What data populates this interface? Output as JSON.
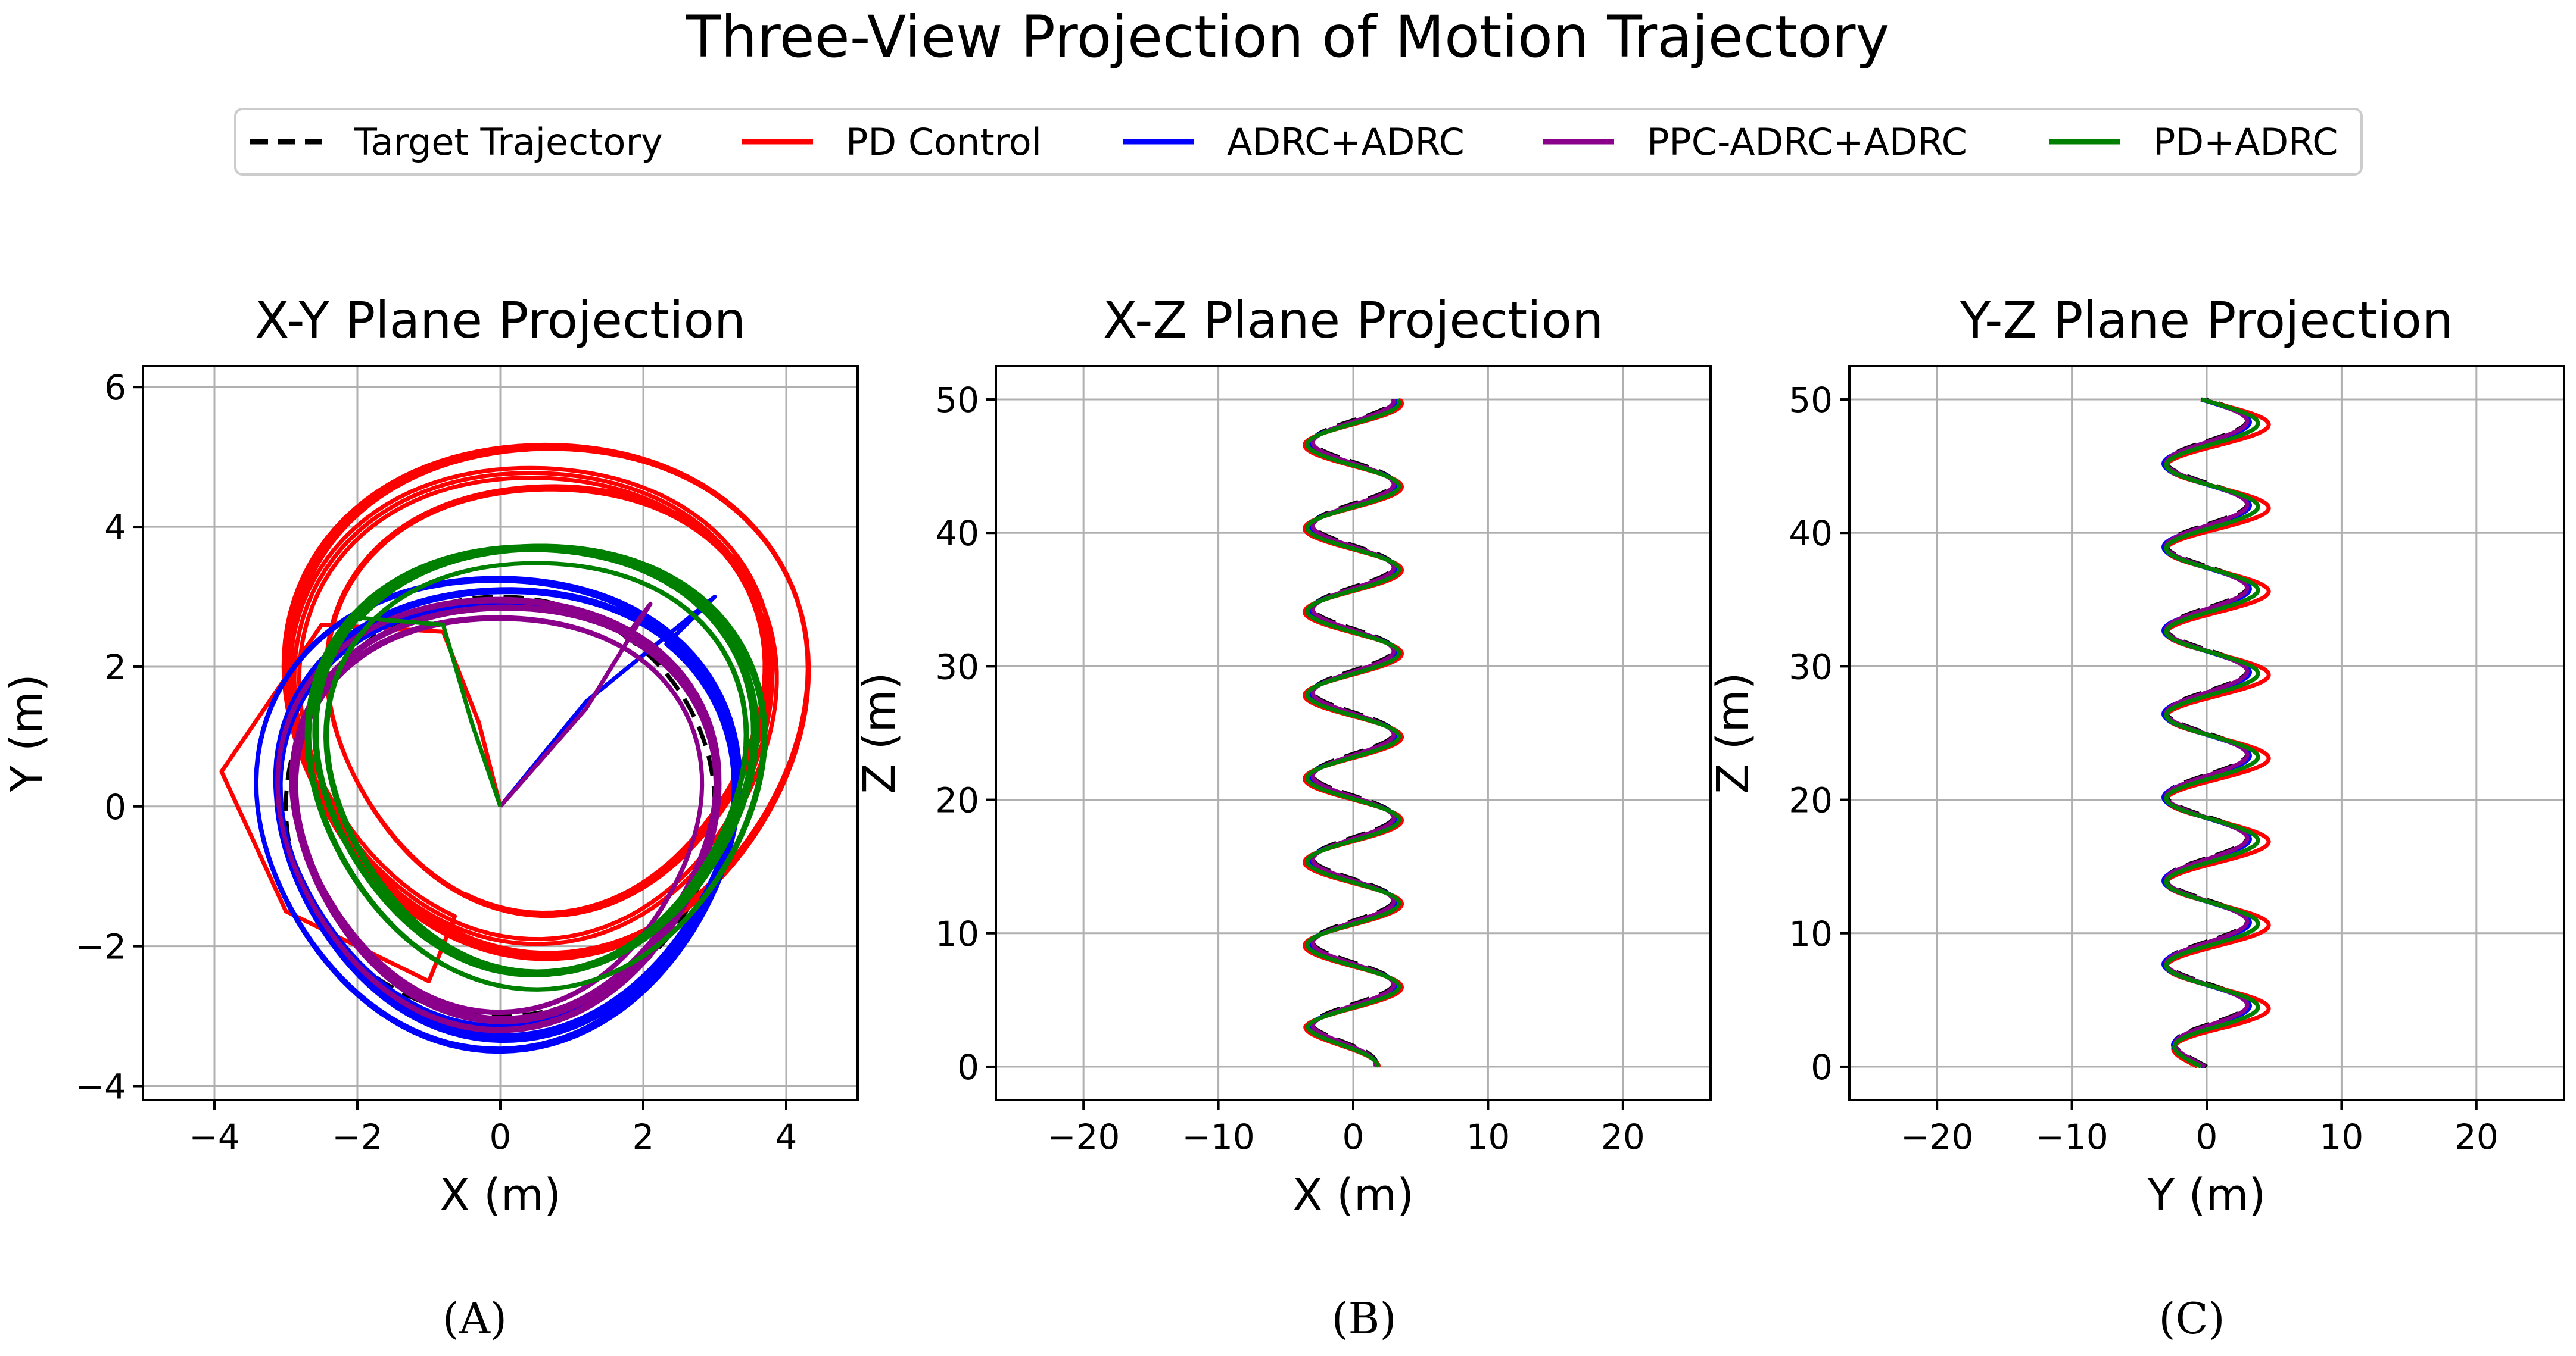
{
  "figure": {
    "title": "Three-View Projection of Motion Trajectory",
    "legend": {
      "placement": "top-center",
      "entries": [
        {
          "label": "Target Trajectory",
          "color": "#000000",
          "style": "dashed"
        },
        {
          "label": "PD Control",
          "color": "#ff0000",
          "style": "solid"
        },
        {
          "label": "ADRC+ADRC",
          "color": "#0000ff",
          "style": "solid"
        },
        {
          "label": "PPC-ADRC+ADRC",
          "color": "#8b008b",
          "style": "solid"
        },
        {
          "label": "PD+ADRC",
          "color": "#008000",
          "style": "solid"
        }
      ]
    },
    "panel_labels": [
      "(A)",
      "(B)",
      "(C)"
    ]
  },
  "chart_data": [
    {
      "type": "line",
      "title": "X-Y Plane Projection",
      "xlabel": "X (m)",
      "ylabel": "Y (m)",
      "xlim": [
        -5,
        5
      ],
      "ylim": [
        -4.2,
        6.3
      ],
      "xticks": [
        -4,
        -2,
        0,
        2,
        4
      ],
      "yticks": [
        -4,
        -2,
        0,
        2,
        4,
        6
      ],
      "grid": true,
      "series": [
        {
          "name": "Target Trajectory",
          "shape": "circle",
          "center": [
            0,
            0
          ],
          "radius": 3.0
        },
        {
          "name": "PD Control",
          "shape": "spiral",
          "approach": [
            [
              0,
              0
            ],
            [
              -0.3,
              1.2
            ],
            [
              -0.8,
              2.5
            ],
            [
              -2.5,
              2.6
            ],
            [
              -3.9,
              0.5
            ],
            [
              -3.0,
              -1.5
            ],
            [
              -1.0,
              -2.5
            ]
          ],
          "center": [
            0.6,
            1.6
          ],
          "radius_range": [
            3.0,
            3.7
          ]
        },
        {
          "name": "ADRC+ADRC",
          "shape": "orbit",
          "approach": [
            [
              0,
              0
            ],
            [
              1.2,
              1.5
            ],
            [
              3.0,
              3.0
            ]
          ],
          "center": [
            0,
            0
          ],
          "radius_range": [
            3.0,
            3.4
          ]
        },
        {
          "name": "PPC-ADRC+ADRC",
          "shape": "orbit",
          "approach": [
            [
              0,
              0
            ],
            [
              1.2,
              1.4
            ],
            [
              2.1,
              2.9
            ]
          ],
          "center": [
            0,
            0
          ],
          "radius_range": [
            2.8,
            3.1
          ]
        },
        {
          "name": "PD+ADRC",
          "shape": "spiral",
          "approach": [
            [
              0,
              0
            ],
            [
              -0.4,
              1.2
            ],
            [
              -0.8,
              2.6
            ],
            [
              -2.0,
              2.7
            ]
          ],
          "center": [
            0.5,
            0.7
          ],
          "radius_range": [
            2.9,
            3.2
          ]
        }
      ]
    },
    {
      "type": "line",
      "title": "X-Z Plane Projection",
      "xlabel": "X (m)",
      "ylabel": "Z (m)",
      "xlim": [
        -26.5,
        26.5
      ],
      "ylim": [
        -2.5,
        52.5
      ],
      "xticks": [
        -20,
        -10,
        0,
        10,
        20
      ],
      "yticks": [
        0,
        10,
        20,
        30,
        40,
        50
      ],
      "grid": true,
      "series": [
        {
          "name": "Target Trajectory",
          "amplitude": 3.0,
          "z_period": 6.25,
          "phase": 0
        },
        {
          "name": "PD Control",
          "amplitude": 3.6,
          "z_period": 6.25,
          "phase": 0.3
        },
        {
          "name": "ADRC+ADRC",
          "amplitude": 3.2,
          "z_period": 6.25,
          "phase": 0.15
        },
        {
          "name": "PPC-ADRC+ADRC",
          "amplitude": 3.0,
          "z_period": 6.25,
          "phase": 0.1
        },
        {
          "name": "PD+ADRC",
          "amplitude": 3.4,
          "z_period": 6.25,
          "phase": 0.25
        }
      ]
    },
    {
      "type": "line",
      "title": "Y-Z Plane Projection",
      "xlabel": "Y (m)",
      "ylabel": "Z (m)",
      "xlim": [
        -26.5,
        26.5
      ],
      "ylim": [
        -2.5,
        52.5
      ],
      "xticks": [
        -20,
        -10,
        0,
        10,
        20
      ],
      "yticks": [
        0,
        10,
        20,
        30,
        40,
        50
      ],
      "grid": true,
      "series": [
        {
          "name": "Target Trajectory",
          "amplitude": 3.0,
          "z_period": 6.25,
          "phase": 1.5708
        },
        {
          "name": "PD Control",
          "amplitude": 3.8,
          "z_period": 6.25,
          "phase": 1.9,
          "offset": 0.8
        },
        {
          "name": "ADRC+ADRC",
          "amplitude": 3.2,
          "z_period": 6.25,
          "phase": 1.7
        },
        {
          "name": "PPC-ADRC+ADRC",
          "amplitude": 3.0,
          "z_period": 6.25,
          "phase": 1.65
        },
        {
          "name": "PD+ADRC",
          "amplitude": 3.4,
          "z_period": 6.25,
          "phase": 1.8,
          "offset": 0.4
        }
      ]
    }
  ]
}
